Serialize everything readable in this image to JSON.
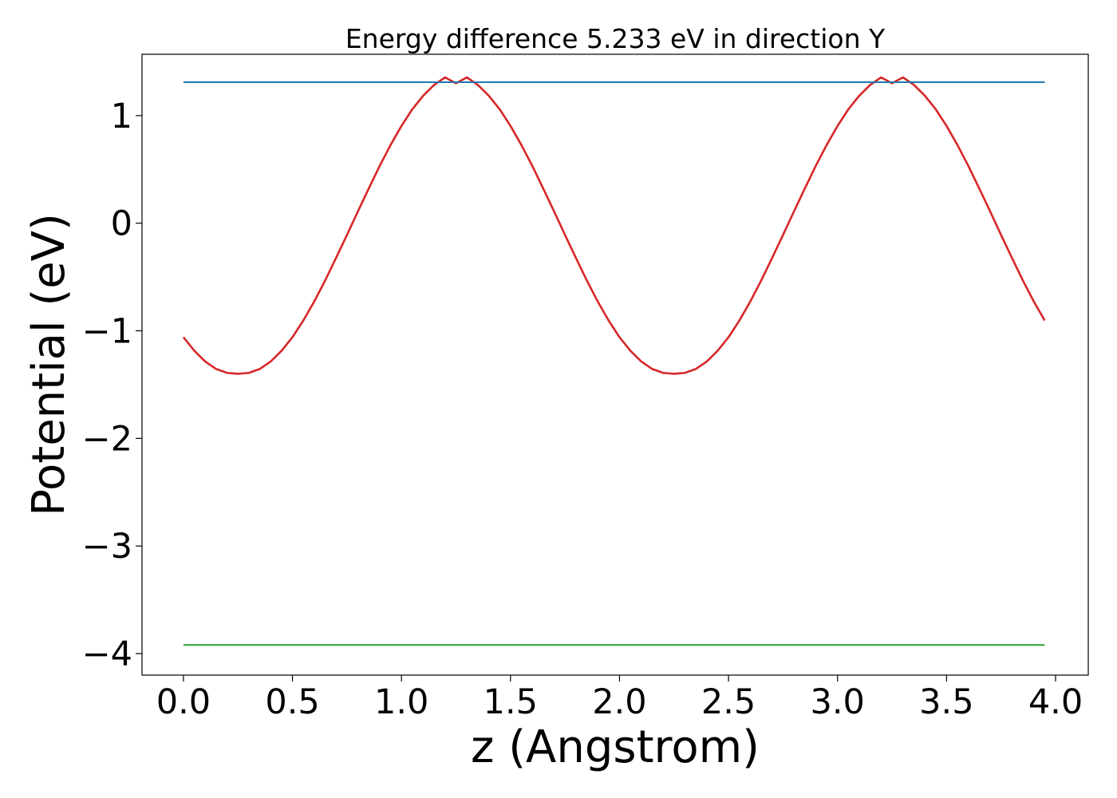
{
  "chart_data": {
    "type": "line",
    "title": "Energy difference 5.233 eV in direction Y",
    "xlabel": "z (Angstrom)",
    "ylabel": "Potential (eV)",
    "xlim": [
      -0.19,
      4.15
    ],
    "ylim": [
      -4.2,
      1.57
    ],
    "x_ticks": [
      0.0,
      0.5,
      1.0,
      1.5,
      2.0,
      2.5,
      3.0,
      3.5,
      4.0
    ],
    "x_tick_labels": [
      "0.0",
      "0.5",
      "1.0",
      "1.5",
      "2.0",
      "2.5",
      "3.0",
      "3.5",
      "4.0"
    ],
    "y_ticks": [
      1,
      0,
      -1,
      -2,
      -3,
      -4
    ],
    "y_tick_labels": [
      "1",
      "0",
      "−1",
      "−2",
      "−3",
      "−4"
    ],
    "grid": false,
    "legend": "none",
    "series": [
      {
        "color": "#d62728",
        "x": [
          0.0,
          0.05,
          0.1,
          0.15,
          0.2,
          0.25,
          0.3,
          0.35,
          0.4,
          0.45,
          0.5,
          0.55,
          0.6,
          0.65,
          0.7,
          0.75,
          0.8,
          0.85,
          0.9,
          0.95,
          1.0,
          1.05,
          1.1,
          1.15,
          1.2,
          1.25,
          1.3,
          1.35,
          1.4,
          1.45,
          1.5,
          1.55,
          1.6,
          1.65,
          1.7,
          1.75,
          1.8,
          1.85,
          1.9,
          1.95,
          2.0,
          2.05,
          2.1,
          2.15,
          2.2,
          2.25,
          2.3,
          2.35,
          2.4,
          2.45,
          2.5,
          2.55,
          2.6,
          2.65,
          2.7,
          2.75,
          2.8,
          2.85,
          2.9,
          2.95,
          3.0,
          3.05,
          3.1,
          3.15,
          3.2,
          3.25,
          3.3,
          3.35,
          3.4,
          3.45,
          3.5,
          3.55,
          3.6,
          3.65,
          3.7,
          3.75,
          3.8,
          3.85,
          3.9,
          3.95
        ],
        "y": [
          -1.06,
          -1.186,
          -1.286,
          -1.355,
          -1.391,
          -1.4,
          -1.391,
          -1.355,
          -1.286,
          -1.186,
          -1.06,
          -0.904,
          -0.727,
          -0.532,
          -0.323,
          -0.109,
          0.109,
          0.323,
          0.532,
          0.727,
          0.904,
          1.06,
          1.186,
          1.286,
          1.355,
          1.3,
          1.355,
          1.286,
          1.186,
          1.06,
          0.904,
          0.727,
          0.532,
          0.323,
          0.109,
          -0.109,
          -0.323,
          -0.532,
          -0.727,
          -0.904,
          -1.06,
          -1.186,
          -1.286,
          -1.355,
          -1.391,
          -1.4,
          -1.391,
          -1.355,
          -1.286,
          -1.186,
          -1.06,
          -0.904,
          -0.727,
          -0.532,
          -0.323,
          -0.109,
          0.109,
          0.323,
          0.532,
          0.727,
          0.904,
          1.06,
          1.186,
          1.286,
          1.355,
          1.3,
          1.355,
          1.286,
          1.186,
          1.06,
          0.904,
          0.727,
          0.532,
          0.323,
          0.109,
          -0.109,
          -0.323,
          -0.532,
          -0.727,
          -0.904
        ]
      },
      {
        "color": "#1f77b4",
        "x": [
          0.0,
          3.95
        ],
        "y": [
          1.31,
          1.31
        ]
      },
      {
        "color": "#2ca02c",
        "x": [
          0.0,
          3.95
        ],
        "y": [
          -3.92,
          -3.92
        ]
      }
    ]
  }
}
